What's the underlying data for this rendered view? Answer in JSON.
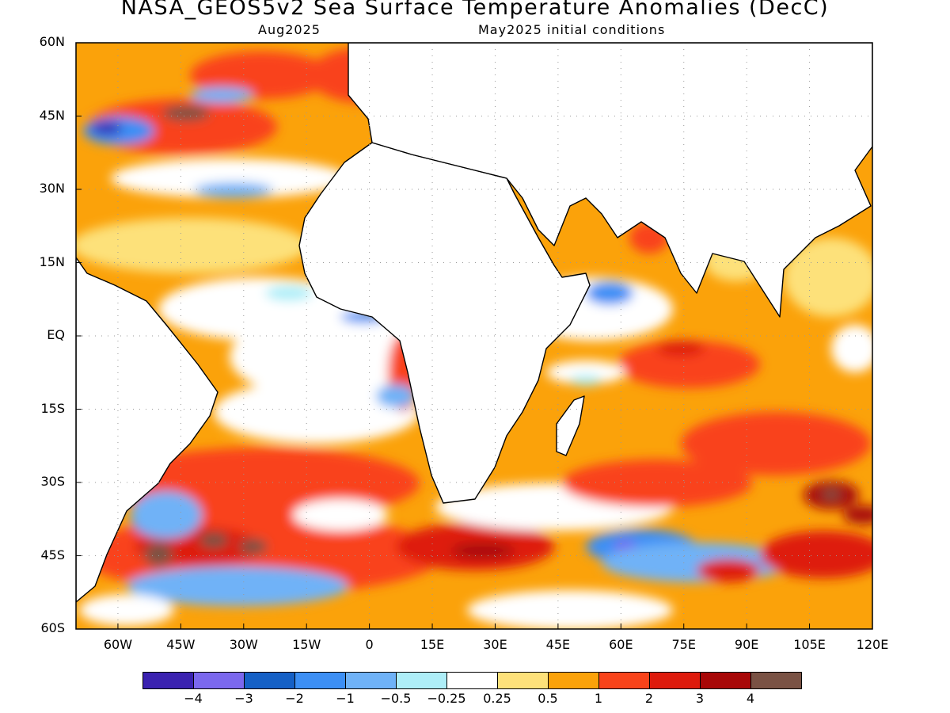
{
  "title": "NASA_GEOS5v2 Sea Surface Temperature Anomalies (DecC)",
  "subtitle_left": "Aug2025",
  "subtitle_right": "May2025 initial conditions",
  "map": {
    "lon_range": [
      -70,
      120
    ],
    "lat_range": [
      -60,
      60
    ],
    "lat_labels": [
      "60N",
      "45N",
      "30N",
      "15N",
      "EQ",
      "15S",
      "30S",
      "45S",
      "60S"
    ],
    "lon_labels": [
      "60W",
      "45W",
      "30W",
      "15W",
      "0",
      "15E",
      "30E",
      "45E",
      "60E",
      "75E",
      "90E",
      "105E",
      "120E"
    ],
    "grid": "dotted"
  },
  "colorbar": {
    "colors": [
      "#3a22b0",
      "#7b68ee",
      "#1560c6",
      "#3c8ff5",
      "#6fb2f7",
      "#aeeef8",
      "#ffffff",
      "#fde17a",
      "#fba20a",
      "#f9431a",
      "#de1a0c",
      "#a80707",
      "#7a5244"
    ],
    "labels": [
      "−4",
      "−3",
      "−2",
      "−1",
      "−0.5",
      "−0.25",
      "0.25",
      "0.5",
      "1",
      "2",
      "3",
      "4"
    ]
  }
}
